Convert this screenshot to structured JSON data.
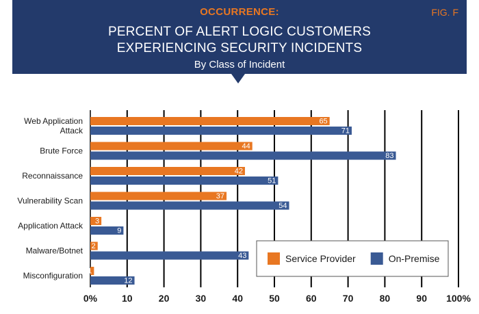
{
  "header": {
    "pre_title": "OCCURRENCE:",
    "fig_label": "FIG. F",
    "title_line1": "PERCENT OF ALERT LOGIC CUSTOMERS",
    "title_line2": "EXPERIENCING SECURITY INCIDENTS",
    "subtitle": "By Class of Incident"
  },
  "colors": {
    "banner": "#233a6b",
    "service_provider": "#e87722",
    "on_premise": "#3a5a94"
  },
  "chart_data": {
    "type": "bar",
    "orientation": "horizontal",
    "title": "PERCENT OF ALERT LOGIC CUSTOMERS EXPERIENCING SECURITY INCIDENTS",
    "subtitle": "By Class of Incident",
    "categories": [
      [
        "Web Application",
        "Attack"
      ],
      [
        "Brute Force"
      ],
      [
        "Reconnaissance"
      ],
      [
        "Vulnerability Scan"
      ],
      [
        "Application Attack"
      ],
      [
        "Malware/Botnet"
      ],
      [
        "Misconfiguration"
      ]
    ],
    "series": [
      {
        "name": "Service Provider",
        "color": "#e87722",
        "values": [
          65,
          44,
          42,
          37,
          3,
          2,
          1
        ]
      },
      {
        "name": "On-Premise",
        "color": "#3a5a94",
        "values": [
          71,
          83,
          51,
          54,
          9,
          43,
          12
        ]
      }
    ],
    "xlim": [
      0,
      100
    ],
    "xticks": [
      "0%",
      "10",
      "20",
      "30",
      "40",
      "50",
      "60",
      "70",
      "80",
      "90",
      "100%"
    ],
    "grid": true,
    "legend_position": "bottom-right"
  }
}
